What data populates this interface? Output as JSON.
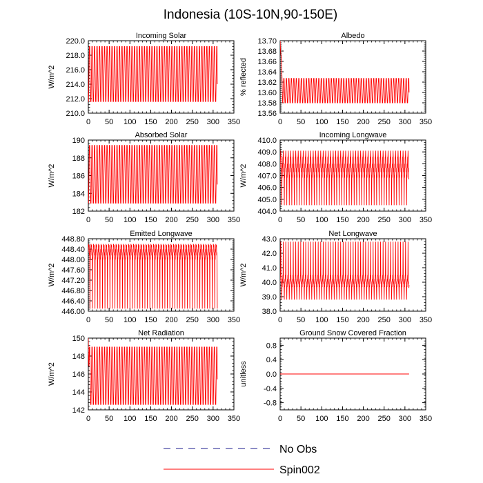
{
  "figure_title": "Indonesia (10S-10N,90-150E)",
  "colors": {
    "spin": "#ff0000",
    "obs": "#1a1a8c",
    "axis": "#000000"
  },
  "legend": {
    "items": [
      {
        "label": "No Obs",
        "style": "dashed"
      },
      {
        "label": "Spin002",
        "style": "solid"
      }
    ]
  },
  "chart_data": [
    {
      "type": "line",
      "title": "Incoming Solar",
      "ylabel": "W/m^2",
      "xlim": [
        0,
        350
      ],
      "xticks": [
        "0",
        "50",
        "100",
        "150",
        "200",
        "250",
        "300",
        "350"
      ],
      "ylim": [
        210,
        220
      ],
      "yticks": [
        "210.0",
        "212.0",
        "214.0",
        "216.0",
        "218.0",
        "220.0"
      ],
      "series": [
        {
          "name": "Spin002",
          "x_range": [
            0,
            310
          ],
          "n_points": 620,
          "period_days": 6,
          "min": 211.6,
          "max": 219.2,
          "tail_value": 214.0
        }
      ]
    },
    {
      "type": "line",
      "title": "Albedo",
      "ylabel": "% reflected",
      "xlim": [
        0,
        350
      ],
      "xticks": [
        "0",
        "50",
        "100",
        "150",
        "200",
        "250",
        "300",
        "350"
      ],
      "ylim": [
        13.56,
        13.7
      ],
      "yticks": [
        "13.56",
        "13.58",
        "13.60",
        "13.62",
        "13.64",
        "13.66",
        "13.68",
        "13.70"
      ],
      "series": [
        {
          "name": "Spin002",
          "x_range": [
            0,
            310
          ],
          "n_points": 620,
          "period_days": 6,
          "initial_value": 13.7,
          "spinup_days": 6,
          "min": 13.58,
          "max": 13.627,
          "tail_value": 13.6
        }
      ]
    },
    {
      "type": "line",
      "title": "Absorbed Solar",
      "ylabel": "W/m^2",
      "xlim": [
        0,
        350
      ],
      "xticks": [
        "0",
        "50",
        "100",
        "150",
        "200",
        "250",
        "300",
        "350"
      ],
      "ylim": [
        182,
        190
      ],
      "yticks": [
        "182",
        "184",
        "186",
        "188",
        "190"
      ],
      "series": [
        {
          "name": "Spin002",
          "x_range": [
            0,
            310
          ],
          "n_points": 620,
          "period_days": 6,
          "min": 182.9,
          "max": 189.4,
          "tail_value": 185.0
        }
      ]
    },
    {
      "type": "line",
      "title": "Incoming Longwave",
      "ylabel": "W/m^2",
      "xlim": [
        0,
        350
      ],
      "xticks": [
        "0",
        "50",
        "100",
        "150",
        "200",
        "250",
        "300",
        "350"
      ],
      "ylim": [
        404,
        410
      ],
      "yticks": [
        "404.0",
        "405.0",
        "406.0",
        "407.0",
        "408.0",
        "409.0",
        "410.0"
      ],
      "series": [
        {
          "name": "Spin002",
          "x_range": [
            0,
            310
          ],
          "n_points": 620,
          "period_days": 6,
          "band_low": 406.7,
          "band_high": 408.6,
          "spike_low": 404.5,
          "spike_high": 409.1,
          "tail_value": 406.7
        }
      ]
    },
    {
      "type": "line",
      "title": "Emitted Longwave",
      "ylabel": "W/m^2",
      "xlim": [
        0,
        350
      ],
      "xticks": [
        "0",
        "50",
        "100",
        "150",
        "200",
        "250",
        "300",
        "350"
      ],
      "ylim": [
        446.0,
        448.8
      ],
      "yticks": [
        "446.00",
        "446.40",
        "446.80",
        "447.20",
        "447.60",
        "448.00",
        "448.40",
        "448.80"
      ],
      "series": [
        {
          "name": "Spin002",
          "x_range": [
            0,
            310
          ],
          "n_points": 620,
          "period_days": 6,
          "band_low": 447.95,
          "band_high": 448.6,
          "spike_low": 446.1,
          "tail_value": 446.1
        }
      ]
    },
    {
      "type": "line",
      "title": "Net Longwave",
      "ylabel": "W/m^2",
      "xlim": [
        0,
        350
      ],
      "xticks": [
        "0",
        "50",
        "100",
        "150",
        "200",
        "250",
        "300",
        "350"
      ],
      "ylim": [
        38,
        43
      ],
      "yticks": [
        "38.0",
        "39.0",
        "40.0",
        "41.0",
        "42.0",
        "43.0"
      ],
      "series": [
        {
          "name": "Spin002",
          "x_range": [
            0,
            310
          ],
          "n_points": 620,
          "period_days": 6,
          "band_low": 39.6,
          "band_high": 40.5,
          "spike_low": 38.8,
          "spike_high": 42.8,
          "tail_value": 39.8
        }
      ]
    },
    {
      "type": "line",
      "title": "Net Radiation",
      "ylabel": "W/m^2",
      "xlim": [
        0,
        350
      ],
      "xticks": [
        "0",
        "50",
        "100",
        "150",
        "200",
        "250",
        "300",
        "350"
      ],
      "ylim": [
        142,
        150
      ],
      "yticks": [
        "142",
        "144",
        "146",
        "148",
        "150"
      ],
      "series": [
        {
          "name": "Spin002",
          "x_range": [
            0,
            310
          ],
          "n_points": 620,
          "period_days": 6,
          "initial_value": 150,
          "min": 142.6,
          "max": 149.0,
          "tail_value": 145.4
        }
      ]
    },
    {
      "type": "line",
      "title": "Ground Snow Covered Fraction",
      "ylabel": "unitless",
      "xlim": [
        0,
        350
      ],
      "xticks": [
        "0",
        "50",
        "100",
        "150",
        "200",
        "250",
        "300",
        "350"
      ],
      "ylim": [
        -1.0,
        1.0
      ],
      "yticks": [
        "-0.8",
        "-0.4",
        "0.0",
        "0.4",
        "0.8"
      ],
      "series": [
        {
          "name": "Spin002",
          "x_range": [
            0,
            310
          ],
          "n_points": 2,
          "constant": 0.0
        }
      ]
    }
  ]
}
